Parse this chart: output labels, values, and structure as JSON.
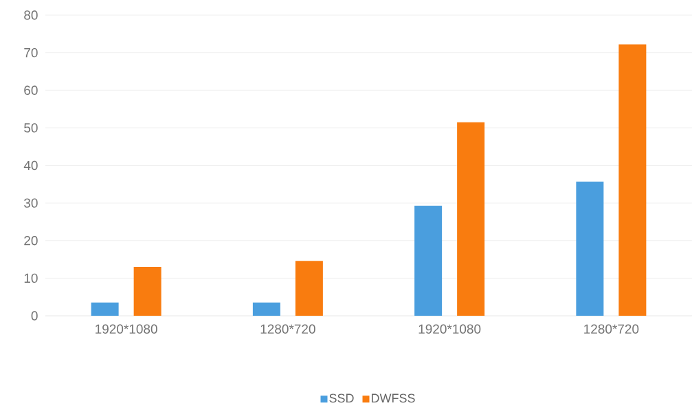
{
  "chart_data": {
    "type": "bar",
    "categories": [
      "1920*1080",
      "1280*720",
      "1920*1080",
      "1280*720"
    ],
    "series": [
      {
        "name": "SSD",
        "color": "#4a9ede",
        "values": [
          3.5,
          3.5,
          29.3,
          35.7
        ]
      },
      {
        "name": "DWFSS",
        "color": "#f97c0f",
        "values": [
          13.0,
          14.6,
          51.5,
          72.2
        ]
      }
    ],
    "ylim": [
      0,
      80
    ],
    "yticks": [
      0,
      10,
      20,
      30,
      40,
      50,
      60,
      70,
      80
    ],
    "grid": "y",
    "legend": "bottom"
  }
}
